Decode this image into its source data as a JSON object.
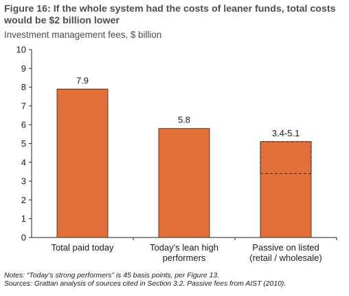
{
  "title": "Figure 16: If the whole system had the costs of leaner funds, total costs would be $2 billion lower",
  "subtitle": "Investment management fees, $ billion",
  "colors": {
    "bar": "#e2703a",
    "bar_stroke": "#3a1d10",
    "axis": "#222222"
  },
  "chart_data": {
    "type": "bar",
    "title": "Figure 16: If the whole system had the costs of leaner funds, total costs would be $2 billion lower",
    "ylabel": "Investment management fees, $ billion",
    "xlabel": "",
    "ylim": [
      0,
      10
    ],
    "yticks": [
      0,
      1,
      2,
      3,
      4,
      5,
      6,
      7,
      8,
      9,
      10
    ],
    "grid": false,
    "categories": [
      [
        "Total paid today"
      ],
      [
        "Today's lean high",
        "performers"
      ],
      [
        "Passive on listed",
        "(retail / wholesale)"
      ]
    ],
    "values": [
      7.9,
      5.8,
      5.1
    ],
    "range_low": [
      null,
      null,
      3.4
    ],
    "data_labels": [
      "7.9",
      "5.8",
      "3.4-5.1"
    ]
  },
  "notes": {
    "line1": "Notes: “Today’s strong performers” is 45 basis points, per Figure 13.",
    "line2": "Sources: Grattan analysis of sources cited in Section 3.2. Passive fees from AIST (2010)."
  }
}
